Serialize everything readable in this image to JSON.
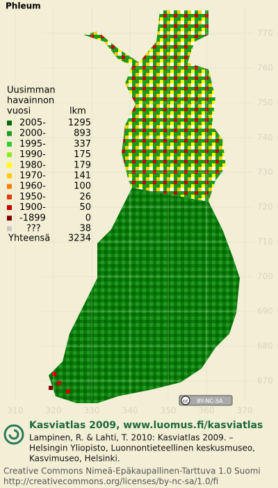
{
  "title": "Phleum",
  "legend": {
    "heading": [
      "Uusimman",
      "havainnon",
      "vuosi"
    ],
    "count_heading": "lkm",
    "rows": [
      {
        "label": "2005-",
        "count": 1295,
        "color": "#006a00"
      },
      {
        "label": "2000-",
        "count": 893,
        "color": "#1f9a1f"
      },
      {
        "label": "1995-",
        "count": 337,
        "color": "#33cc33"
      },
      {
        "label": "1990-",
        "count": 175,
        "color": "#8fe81f"
      },
      {
        "label": "1980-",
        "count": 179,
        "color": "#ffff00"
      },
      {
        "label": "1970-",
        "count": 141,
        "color": "#ffcc00"
      },
      {
        "label": "1960-",
        "count": 100,
        "color": "#ff8000"
      },
      {
        "label": "1950-",
        "count": 26,
        "color": "#e04000"
      },
      {
        "label": "1900-",
        "count": 50,
        "color": "#cc0000"
      },
      {
        "label": "-1899",
        "count": 0,
        "color": "#800000"
      },
      {
        "label": "???",
        "count": 38,
        "color": "#c8c8c8"
      }
    ],
    "total_label": "Yhteensä",
    "total": 3234
  },
  "axes": {
    "x_ticks": [
      310,
      320,
      330,
      340,
      350,
      360,
      370
    ],
    "y_ticks": [
      670,
      680,
      690,
      700,
      710,
      720,
      730,
      740,
      750,
      760,
      770
    ]
  },
  "badge": {
    "icon": "cc",
    "text": "BY-NC-SA"
  },
  "footer": {
    "title": "Kasviatlas 2009, www.luomus.fi/kasviatlas",
    "citation": [
      "Lampinen, R. & Lahti, T. 2010: Kasviatlas 2009. –",
      "Helsingin Yliopisto, Luonnontieteellinen keskusmuseo,",
      "Kasvimuseo, Helsinki."
    ],
    "license": [
      "Creative Commons Nimeä-Epäkaupallinen-Tarttuva 1.0 Suomi",
      "http://creativecommons.org/licenses/by-nc-sa/1.0/fi"
    ]
  }
}
